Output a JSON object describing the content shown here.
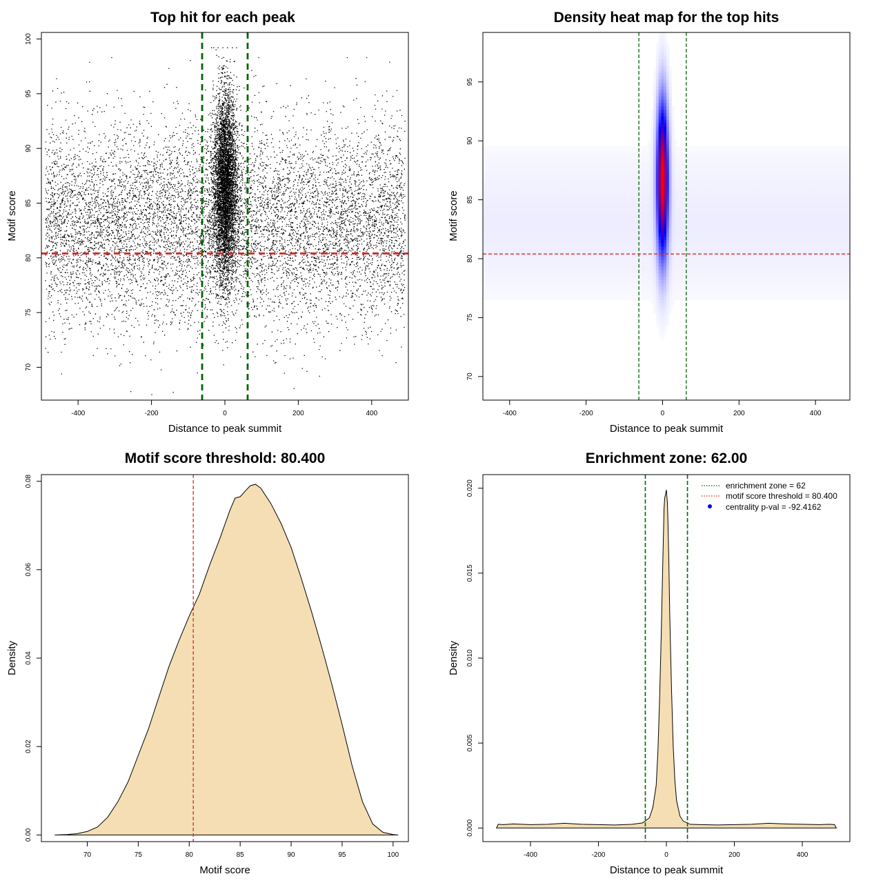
{
  "chart_data": [
    {
      "id": "scatter",
      "type": "scatter",
      "title": "Top hit for each peak",
      "xlabel": "Distance to peak summit",
      "ylabel": "Motif score",
      "xlim": [
        -500,
        500
      ],
      "ylim": [
        67,
        100.6
      ],
      "xticks": [
        -400,
        -200,
        0,
        200,
        400
      ],
      "yticks": [
        70,
        75,
        80,
        85,
        90,
        95,
        100
      ],
      "xtick_labels": [
        "-400",
        "-200",
        "0",
        "200",
        "400"
      ],
      "ytick_labels": [
        "70",
        "75",
        "80",
        "85",
        "90",
        "95",
        "100"
      ],
      "vlines": [
        -62,
        62
      ],
      "hline": 80.4,
      "vline_color": "#006400",
      "hline_color": "#d62728",
      "point_color": "#000000",
      "distribution": {
        "central_points": 22000,
        "central_x_sd": 16,
        "central_y_mean": 86.5,
        "central_y_sd": 4.2,
        "background_points": 9000,
        "background_x_range": [
          -490,
          490
        ],
        "background_y_mean": 83,
        "background_y_sd": 4.5
      }
    },
    {
      "id": "heatmap",
      "type": "heatmap",
      "title": "Density heat map for the top hits",
      "xlabel": "Distance to peak summit",
      "ylabel": "Motif score",
      "xlim": [
        -470,
        490
      ],
      "ylim": [
        68,
        99.2
      ],
      "xticks": [
        -400,
        -200,
        0,
        200,
        400
      ],
      "yticks": [
        70,
        75,
        80,
        85,
        90,
        95
      ],
      "xtick_labels": [
        "-400",
        "-200",
        "0",
        "200",
        "400"
      ],
      "ytick_labels": [
        "70",
        "75",
        "80",
        "85",
        "90",
        "95"
      ],
      "vlines": [
        -62,
        62
      ],
      "hline": 80.4,
      "vline_color": "#006400",
      "hline_color": "#d62728",
      "color_scale": [
        "#ffffff",
        "#0000ff",
        "#ff0000"
      ],
      "peak": {
        "x": 0,
        "y": 86.8,
        "x_sd": 10,
        "y_sd": 4.4
      }
    },
    {
      "id": "score_density",
      "type": "area",
      "title": "Motif score threshold: 80.400",
      "xlabel": "Motif score",
      "ylabel": "Density",
      "xlim": [
        65.5,
        101.5
      ],
      "ylim": [
        -0.0015,
        0.0815
      ],
      "xticks": [
        70,
        75,
        80,
        85,
        90,
        95,
        100
      ],
      "yticks": [
        0,
        0.02,
        0.04,
        0.06,
        0.08
      ],
      "xtick_labels": [
        "70",
        "75",
        "80",
        "85",
        "90",
        "95",
        "100"
      ],
      "ytick_labels": [
        "0.00",
        "0.02",
        "0.04",
        "0.06",
        "0.08"
      ],
      "vline": 80.4,
      "vline_color": "#d62728",
      "fill_color": "#f5deb3",
      "x": [
        66.8,
        68,
        69,
        70,
        71,
        72,
        73,
        74,
        75,
        76,
        77,
        78,
        79,
        80,
        80.4,
        81,
        82,
        83,
        84,
        84.5,
        85,
        85.5,
        86,
        86.5,
        87,
        88,
        89,
        90,
        91,
        92,
        93,
        94,
        95,
        96,
        97,
        98,
        99,
        100,
        100.5
      ],
      "y": [
        0,
        0.0001,
        0.0003,
        0.0008,
        0.0018,
        0.004,
        0.0075,
        0.012,
        0.018,
        0.024,
        0.031,
        0.038,
        0.044,
        0.0495,
        0.0515,
        0.0545,
        0.061,
        0.067,
        0.0735,
        0.0762,
        0.0765,
        0.0778,
        0.079,
        0.0793,
        0.0785,
        0.075,
        0.0705,
        0.065,
        0.058,
        0.0505,
        0.0425,
        0.034,
        0.025,
        0.0155,
        0.0075,
        0.0025,
        0.0006,
        0.0001,
        0
      ]
    },
    {
      "id": "distance_density",
      "type": "area",
      "title": "Enrichment zone: 62.00",
      "xlabel": "Distance to peak summit",
      "ylabel": "Density",
      "xlim": [
        -540,
        540
      ],
      "ylim": [
        -0.0008,
        0.0208
      ],
      "xticks": [
        -400,
        -200,
        0,
        200,
        400
      ],
      "yticks": [
        0,
        0.005,
        0.01,
        0.015,
        0.02
      ],
      "xtick_labels": [
        "-400",
        "-200",
        "0",
        "200",
        "400"
      ],
      "ytick_labels": [
        "0.000",
        "0.005",
        "0.010",
        "0.015",
        "0.020"
      ],
      "vlines": [
        -62,
        62
      ],
      "vline_color": "#006400",
      "fill_color": "#f5deb3",
      "x": [
        -500,
        -495,
        -480,
        -450,
        -400,
        -350,
        -300,
        -250,
        -200,
        -150,
        -100,
        -70,
        -50,
        -40,
        -30,
        -25,
        -20,
        -15,
        -10,
        -7,
        -5,
        -3,
        0,
        3,
        5,
        7,
        10,
        15,
        20,
        25,
        30,
        40,
        50,
        70,
        100,
        150,
        200,
        250,
        300,
        350,
        400,
        450,
        480,
        495,
        500
      ],
      "y": [
        0,
        0.00022,
        0.0002,
        0.00024,
        0.0002,
        0.00022,
        0.00028,
        0.00022,
        0.0002,
        0.00018,
        0.00022,
        0.0003,
        0.0006,
        0.0012,
        0.0025,
        0.0045,
        0.0075,
        0.0115,
        0.0162,
        0.0188,
        0.0194,
        0.0196,
        0.0199,
        0.0191,
        0.0176,
        0.016,
        0.0125,
        0.0082,
        0.0048,
        0.0028,
        0.0016,
        0.0007,
        0.0004,
        0.00022,
        0.0002,
        0.00018,
        0.0002,
        0.00022,
        0.00028,
        0.00024,
        0.00022,
        0.0002,
        0.00022,
        0.0002,
        0
      ],
      "legend": {
        "position": "top-right",
        "entries": [
          {
            "label": "enrichment zone = 62",
            "style": "dotted",
            "color": "#006400"
          },
          {
            "label": "motif score threshold = 80.400",
            "style": "dotted",
            "color": "#d62728"
          },
          {
            "label": "centrality p-val = -92.4162",
            "style": "point",
            "color": "#0000ff"
          }
        ]
      }
    }
  ]
}
